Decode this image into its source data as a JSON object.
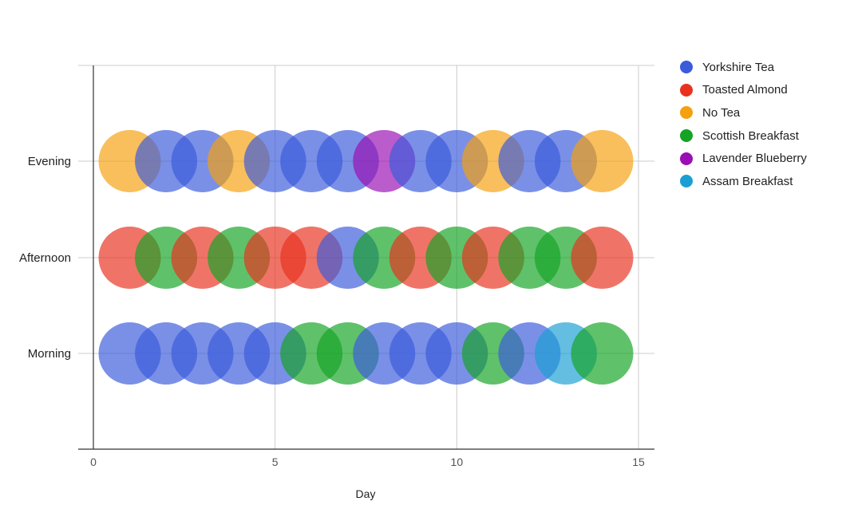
{
  "chart_data": {
    "type": "scatter",
    "subtype": "bubble",
    "title": "",
    "xlabel": "Day",
    "ylabel": "",
    "xlim": [
      0,
      15
    ],
    "x_ticks": [
      "0",
      "5",
      "10",
      "15"
    ],
    "y_categories": [
      "Morning",
      "Afternoon",
      "Evening"
    ],
    "grid": true,
    "legend_position": "right",
    "series": [
      {
        "name": "Yorkshire Tea",
        "color": "#3b5bdb"
      },
      {
        "name": "Toasted Almond",
        "color": "#e8321f"
      },
      {
        "name": "No Tea",
        "color": "#f5a00f"
      },
      {
        "name": "Scottish Breakfast",
        "color": "#15a325"
      },
      {
        "name": "Lavender Blueberry",
        "color": "#9a0fb3"
      },
      {
        "name": "Assam Breakfast",
        "color": "#1a9fd4"
      }
    ],
    "points": [
      {
        "x": 1,
        "y": "Morning",
        "series": "Yorkshire Tea"
      },
      {
        "x": 2,
        "y": "Morning",
        "series": "Yorkshire Tea"
      },
      {
        "x": 3,
        "y": "Morning",
        "series": "Yorkshire Tea"
      },
      {
        "x": 4,
        "y": "Morning",
        "series": "Yorkshire Tea"
      },
      {
        "x": 5,
        "y": "Morning",
        "series": "Yorkshire Tea"
      },
      {
        "x": 6,
        "y": "Morning",
        "series": "Scottish Breakfast"
      },
      {
        "x": 7,
        "y": "Morning",
        "series": "Scottish Breakfast"
      },
      {
        "x": 8,
        "y": "Morning",
        "series": "Yorkshire Tea"
      },
      {
        "x": 9,
        "y": "Morning",
        "series": "Yorkshire Tea"
      },
      {
        "x": 10,
        "y": "Morning",
        "series": "Yorkshire Tea"
      },
      {
        "x": 11,
        "y": "Morning",
        "series": "Scottish Breakfast"
      },
      {
        "x": 12,
        "y": "Morning",
        "series": "Yorkshire Tea"
      },
      {
        "x": 13,
        "y": "Morning",
        "series": "Assam Breakfast"
      },
      {
        "x": 14,
        "y": "Morning",
        "series": "Scottish Breakfast"
      },
      {
        "x": 1,
        "y": "Afternoon",
        "series": "Toasted Almond"
      },
      {
        "x": 2,
        "y": "Afternoon",
        "series": "Scottish Breakfast"
      },
      {
        "x": 3,
        "y": "Afternoon",
        "series": "Toasted Almond"
      },
      {
        "x": 4,
        "y": "Afternoon",
        "series": "Scottish Breakfast"
      },
      {
        "x": 5,
        "y": "Afternoon",
        "series": "Toasted Almond"
      },
      {
        "x": 6,
        "y": "Afternoon",
        "series": "Toasted Almond"
      },
      {
        "x": 7,
        "y": "Afternoon",
        "series": "Yorkshire Tea"
      },
      {
        "x": 8,
        "y": "Afternoon",
        "series": "Scottish Breakfast"
      },
      {
        "x": 9,
        "y": "Afternoon",
        "series": "Toasted Almond"
      },
      {
        "x": 10,
        "y": "Afternoon",
        "series": "Scottish Breakfast"
      },
      {
        "x": 11,
        "y": "Afternoon",
        "series": "Toasted Almond"
      },
      {
        "x": 12,
        "y": "Afternoon",
        "series": "Scottish Breakfast"
      },
      {
        "x": 13,
        "y": "Afternoon",
        "series": "Scottish Breakfast"
      },
      {
        "x": 14,
        "y": "Afternoon",
        "series": "Toasted Almond"
      },
      {
        "x": 1,
        "y": "Evening",
        "series": "No Tea"
      },
      {
        "x": 2,
        "y": "Evening",
        "series": "Yorkshire Tea"
      },
      {
        "x": 3,
        "y": "Evening",
        "series": "Yorkshire Tea"
      },
      {
        "x": 4,
        "y": "Evening",
        "series": "No Tea"
      },
      {
        "x": 5,
        "y": "Evening",
        "series": "Yorkshire Tea"
      },
      {
        "x": 6,
        "y": "Evening",
        "series": "Yorkshire Tea"
      },
      {
        "x": 7,
        "y": "Evening",
        "series": "Yorkshire Tea"
      },
      {
        "x": 8,
        "y": "Evening",
        "series": "Lavender Blueberry"
      },
      {
        "x": 9,
        "y": "Evening",
        "series": "Yorkshire Tea"
      },
      {
        "x": 10,
        "y": "Evening",
        "series": "Yorkshire Tea"
      },
      {
        "x": 11,
        "y": "Evening",
        "series": "No Tea"
      },
      {
        "x": 12,
        "y": "Evening",
        "series": "Yorkshire Tea"
      },
      {
        "x": 13,
        "y": "Evening",
        "series": "Yorkshire Tea"
      },
      {
        "x": 14,
        "y": "Evening",
        "series": "No Tea"
      }
    ]
  }
}
